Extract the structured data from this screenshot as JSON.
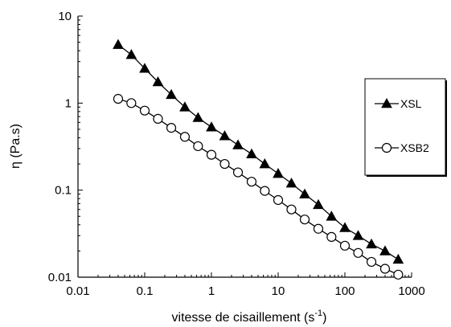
{
  "chart_data": {
    "type": "line",
    "title": "",
    "xlabel": "vitesse de cisaillement",
    "xlabel_unit": "(s",
    "xlabel_exp": "-1",
    "xlabel_close": ")",
    "ylabel": "η (Pa.s)",
    "xscale": "log",
    "yscale": "log",
    "xlim": [
      0.01,
      1000
    ],
    "ylim": [
      0.01,
      10
    ],
    "x_ticks": [
      0.01,
      0.1,
      1,
      10,
      100,
      1000
    ],
    "x_tick_labels": [
      "0.01",
      "0.1",
      "1",
      "10",
      "100",
      "1000"
    ],
    "y_ticks": [
      0.01,
      0.1,
      1,
      10
    ],
    "y_tick_labels": [
      "0.01",
      "0.1",
      "1",
      "10"
    ],
    "grid": false,
    "legend_position": "right",
    "series": [
      {
        "name": "XSL",
        "marker": "filled-triangle",
        "color": "#000000",
        "x": [
          0.04,
          0.063,
          0.1,
          0.158,
          0.25,
          0.4,
          0.63,
          1.0,
          1.58,
          2.5,
          4.0,
          6.3,
          10,
          15.8,
          25,
          40,
          63,
          100,
          158,
          250,
          400,
          630
        ],
        "y": [
          4.7,
          3.6,
          2.5,
          1.75,
          1.25,
          0.9,
          0.68,
          0.53,
          0.42,
          0.33,
          0.26,
          0.2,
          0.155,
          0.12,
          0.09,
          0.068,
          0.05,
          0.037,
          0.03,
          0.024,
          0.02,
          0.016
        ]
      },
      {
        "name": "XSB2",
        "marker": "open-circle",
        "color": "#000000",
        "x": [
          0.04,
          0.063,
          0.1,
          0.158,
          0.25,
          0.4,
          0.63,
          1.0,
          1.58,
          2.5,
          4.0,
          6.3,
          10,
          15.8,
          25,
          40,
          63,
          100,
          158,
          250,
          400,
          630
        ],
        "y": [
          1.12,
          1.0,
          0.82,
          0.66,
          0.52,
          0.41,
          0.32,
          0.255,
          0.2,
          0.16,
          0.125,
          0.098,
          0.077,
          0.06,
          0.046,
          0.036,
          0.029,
          0.023,
          0.019,
          0.015,
          0.0125,
          0.0107
        ]
      }
    ]
  }
}
